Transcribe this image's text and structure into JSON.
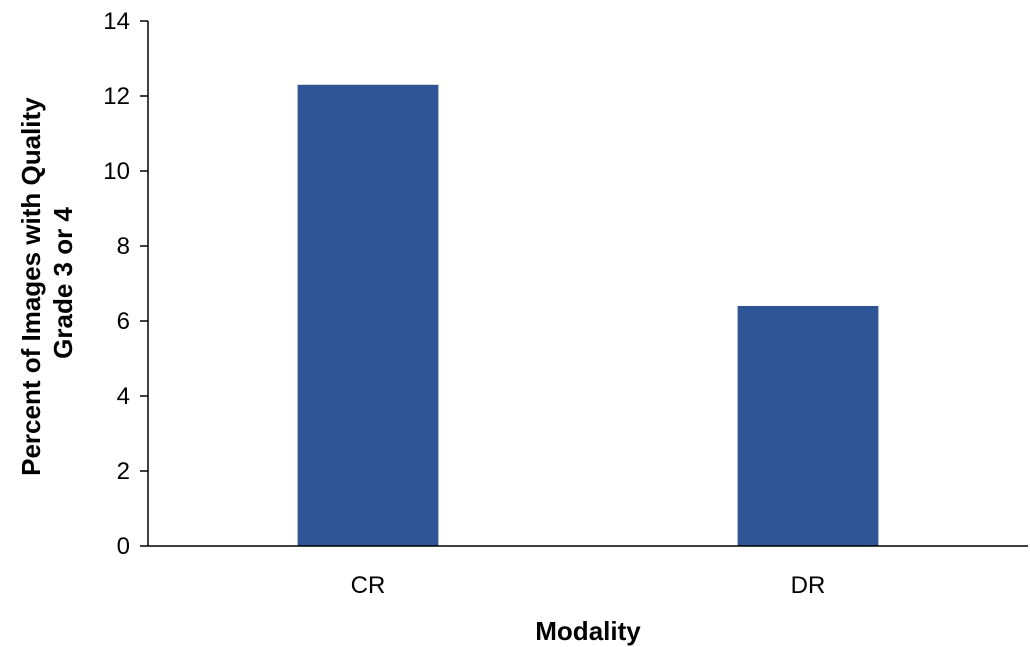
{
  "chart_data": {
    "type": "bar",
    "title": "",
    "xlabel": "Modality",
    "ylabel_lines": [
      "Percent of Images with Quality",
      "Grade 3 or 4"
    ],
    "categories": [
      "CR",
      "DR"
    ],
    "values": [
      12.3,
      6.4
    ],
    "ylim": [
      0,
      14
    ],
    "yticks": [
      0,
      2,
      4,
      6,
      8,
      10,
      12,
      14
    ],
    "grid": false,
    "legend": "none",
    "bar_color": "#2f5597"
  }
}
